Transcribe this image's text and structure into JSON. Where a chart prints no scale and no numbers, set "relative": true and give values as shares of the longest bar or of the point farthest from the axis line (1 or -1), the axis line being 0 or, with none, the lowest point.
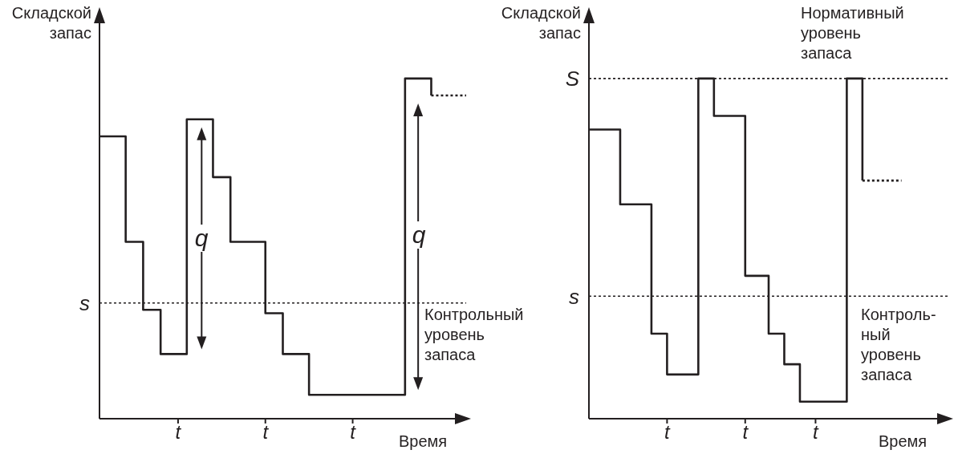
{
  "chart_data": [
    {
      "type": "step",
      "relative": true,
      "ylabel": "Складской\nзапас",
      "xlabel": "Время",
      "marker": "none",
      "line_style": "solid",
      "categories": [
        null,
        null,
        null,
        null,
        null,
        null,
        null,
        null,
        null,
        "t",
        null,
        null,
        null,
        null,
        null,
        null,
        null,
        null,
        null,
        "t",
        null,
        null,
        null,
        null,
        null,
        null,
        null,
        null,
        null,
        "t",
        null,
        null,
        null,
        null,
        null,
        null,
        null,
        null,
        null,
        null,
        null,
        null,
        null
      ],
      "series": [
        {
          "color": "#231f20",
          "values": [
            0.83,
            0.83,
            0.83,
            0.52,
            0.52,
            0.32,
            0.32,
            0.19,
            0.19,
            0.19,
            0.88,
            0.88,
            0.88,
            0.71,
            0.71,
            0.52,
            0.52,
            0.52,
            0.52,
            0.31,
            0.31,
            0.19,
            0.19,
            0.19,
            0.07,
            0.07,
            0.07,
            0.07,
            0.07,
            0.07,
            0.07,
            0.07,
            0.07,
            0.07,
            0.07,
            1.0,
            1.0,
            1.0,
            0.95,
            null,
            null,
            null,
            null
          ]
        },
        {
          "color": "#231f20",
          "line_style": "dotted",
          "values": [
            null,
            null,
            null,
            null,
            null,
            null,
            null,
            null,
            null,
            null,
            null,
            null,
            null,
            null,
            null,
            null,
            null,
            null,
            null,
            null,
            null,
            null,
            null,
            null,
            null,
            null,
            null,
            null,
            null,
            null,
            null,
            null,
            null,
            null,
            null,
            null,
            null,
            null,
            0.95,
            0.95,
            0.95,
            0.95,
            0.95
          ]
        }
      ],
      "ref_lines": [
        {
          "axis": "y",
          "value": 0.34,
          "label": "s",
          "color": "#231f20",
          "line_style": "dotted"
        }
      ],
      "annotations": [
        "q",
        "q",
        "Контрольный\nуровень\nзапаса"
      ]
    },
    {
      "type": "step",
      "relative": true,
      "ylabel": "Складской\nзапас",
      "xlabel": "Время",
      "marker": "none",
      "line_style": "solid",
      "categories": [
        null,
        null,
        null,
        null,
        null,
        null,
        null,
        null,
        null,
        null,
        "t",
        null,
        null,
        null,
        null,
        null,
        null,
        null,
        null,
        null,
        "t",
        null,
        null,
        null,
        null,
        null,
        null,
        null,
        null,
        "t",
        null,
        null,
        null,
        null,
        null,
        null,
        null,
        null,
        null,
        null,
        null,
        null,
        null,
        null,
        null,
        null,
        null
      ],
      "series": [
        {
          "color": "#231f20",
          "values": [
            0.85,
            0.85,
            0.85,
            0.85,
            0.63,
            0.63,
            0.63,
            0.63,
            0.25,
            0.25,
            0.13,
            0.13,
            0.13,
            0.13,
            1.0,
            1.0,
            0.89,
            0.89,
            0.89,
            0.89,
            0.42,
            0.42,
            0.42,
            0.25,
            0.25,
            0.16,
            0.16,
            0.05,
            0.05,
            0.05,
            0.05,
            0.05,
            0.05,
            1.0,
            1.0,
            0.7,
            null,
            null,
            null,
            null,
            null,
            null,
            null,
            null,
            null,
            null,
            null
          ]
        },
        {
          "color": "#231f20",
          "line_style": "dotted",
          "values": [
            null,
            null,
            null,
            null,
            null,
            null,
            null,
            null,
            null,
            null,
            null,
            null,
            null,
            null,
            null,
            null,
            null,
            null,
            null,
            null,
            null,
            null,
            null,
            null,
            null,
            null,
            null,
            null,
            null,
            null,
            null,
            null,
            null,
            null,
            null,
            0.7,
            0.7,
            0.7,
            0.7,
            0.7,
            0.7,
            null,
            null,
            null,
            null,
            null,
            null
          ]
        }
      ],
      "ref_lines": [
        {
          "axis": "y",
          "value": 1.0,
          "label": "S",
          "color": "#231f20",
          "line_style": "dotted"
        },
        {
          "axis": "y",
          "value": 0.36,
          "label": "s",
          "color": "#231f20",
          "line_style": "dotted"
        }
      ],
      "annotations": [
        "Нормативный\nуровень\nзапаса",
        "Контроль-\nный\nуровень\nзапаса"
      ]
    }
  ]
}
